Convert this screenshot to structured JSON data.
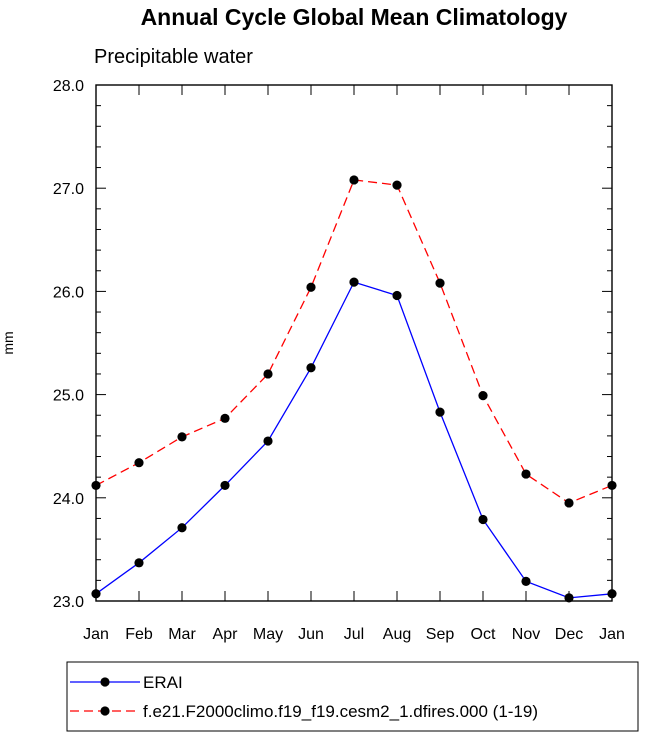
{
  "chart_data": {
    "type": "line",
    "title": "Annual Cycle Global Mean Climatology",
    "subtitle": "Precipitable water",
    "xlabel": "",
    "ylabel": "mm",
    "categories": [
      "Jan",
      "Feb",
      "Mar",
      "Apr",
      "May",
      "Jun",
      "Jul",
      "Aug",
      "Sep",
      "Oct",
      "Nov",
      "Dec",
      "Jan"
    ],
    "ylim": [
      23.0,
      28.0
    ],
    "yticks": [
      "23.0",
      "24.0",
      "25.0",
      "26.0",
      "27.0",
      "28.0"
    ],
    "grid": false,
    "legend_position": "bottom",
    "series": [
      {
        "name": "ERAI",
        "color": "#0000ff",
        "style": "solid",
        "values": [
          23.07,
          23.37,
          23.71,
          24.12,
          24.55,
          25.26,
          26.09,
          25.96,
          24.83,
          23.79,
          23.19,
          23.03,
          23.07
        ]
      },
      {
        "name": "f.e21.F2000climo.f19_f19.cesm2_1.dfires.000 (1-19)",
        "color": "#ff0000",
        "style": "dashed",
        "values": [
          24.12,
          24.34,
          24.59,
          24.77,
          25.2,
          26.04,
          27.08,
          27.03,
          26.08,
          24.99,
          24.23,
          23.95,
          24.12
        ]
      }
    ]
  }
}
